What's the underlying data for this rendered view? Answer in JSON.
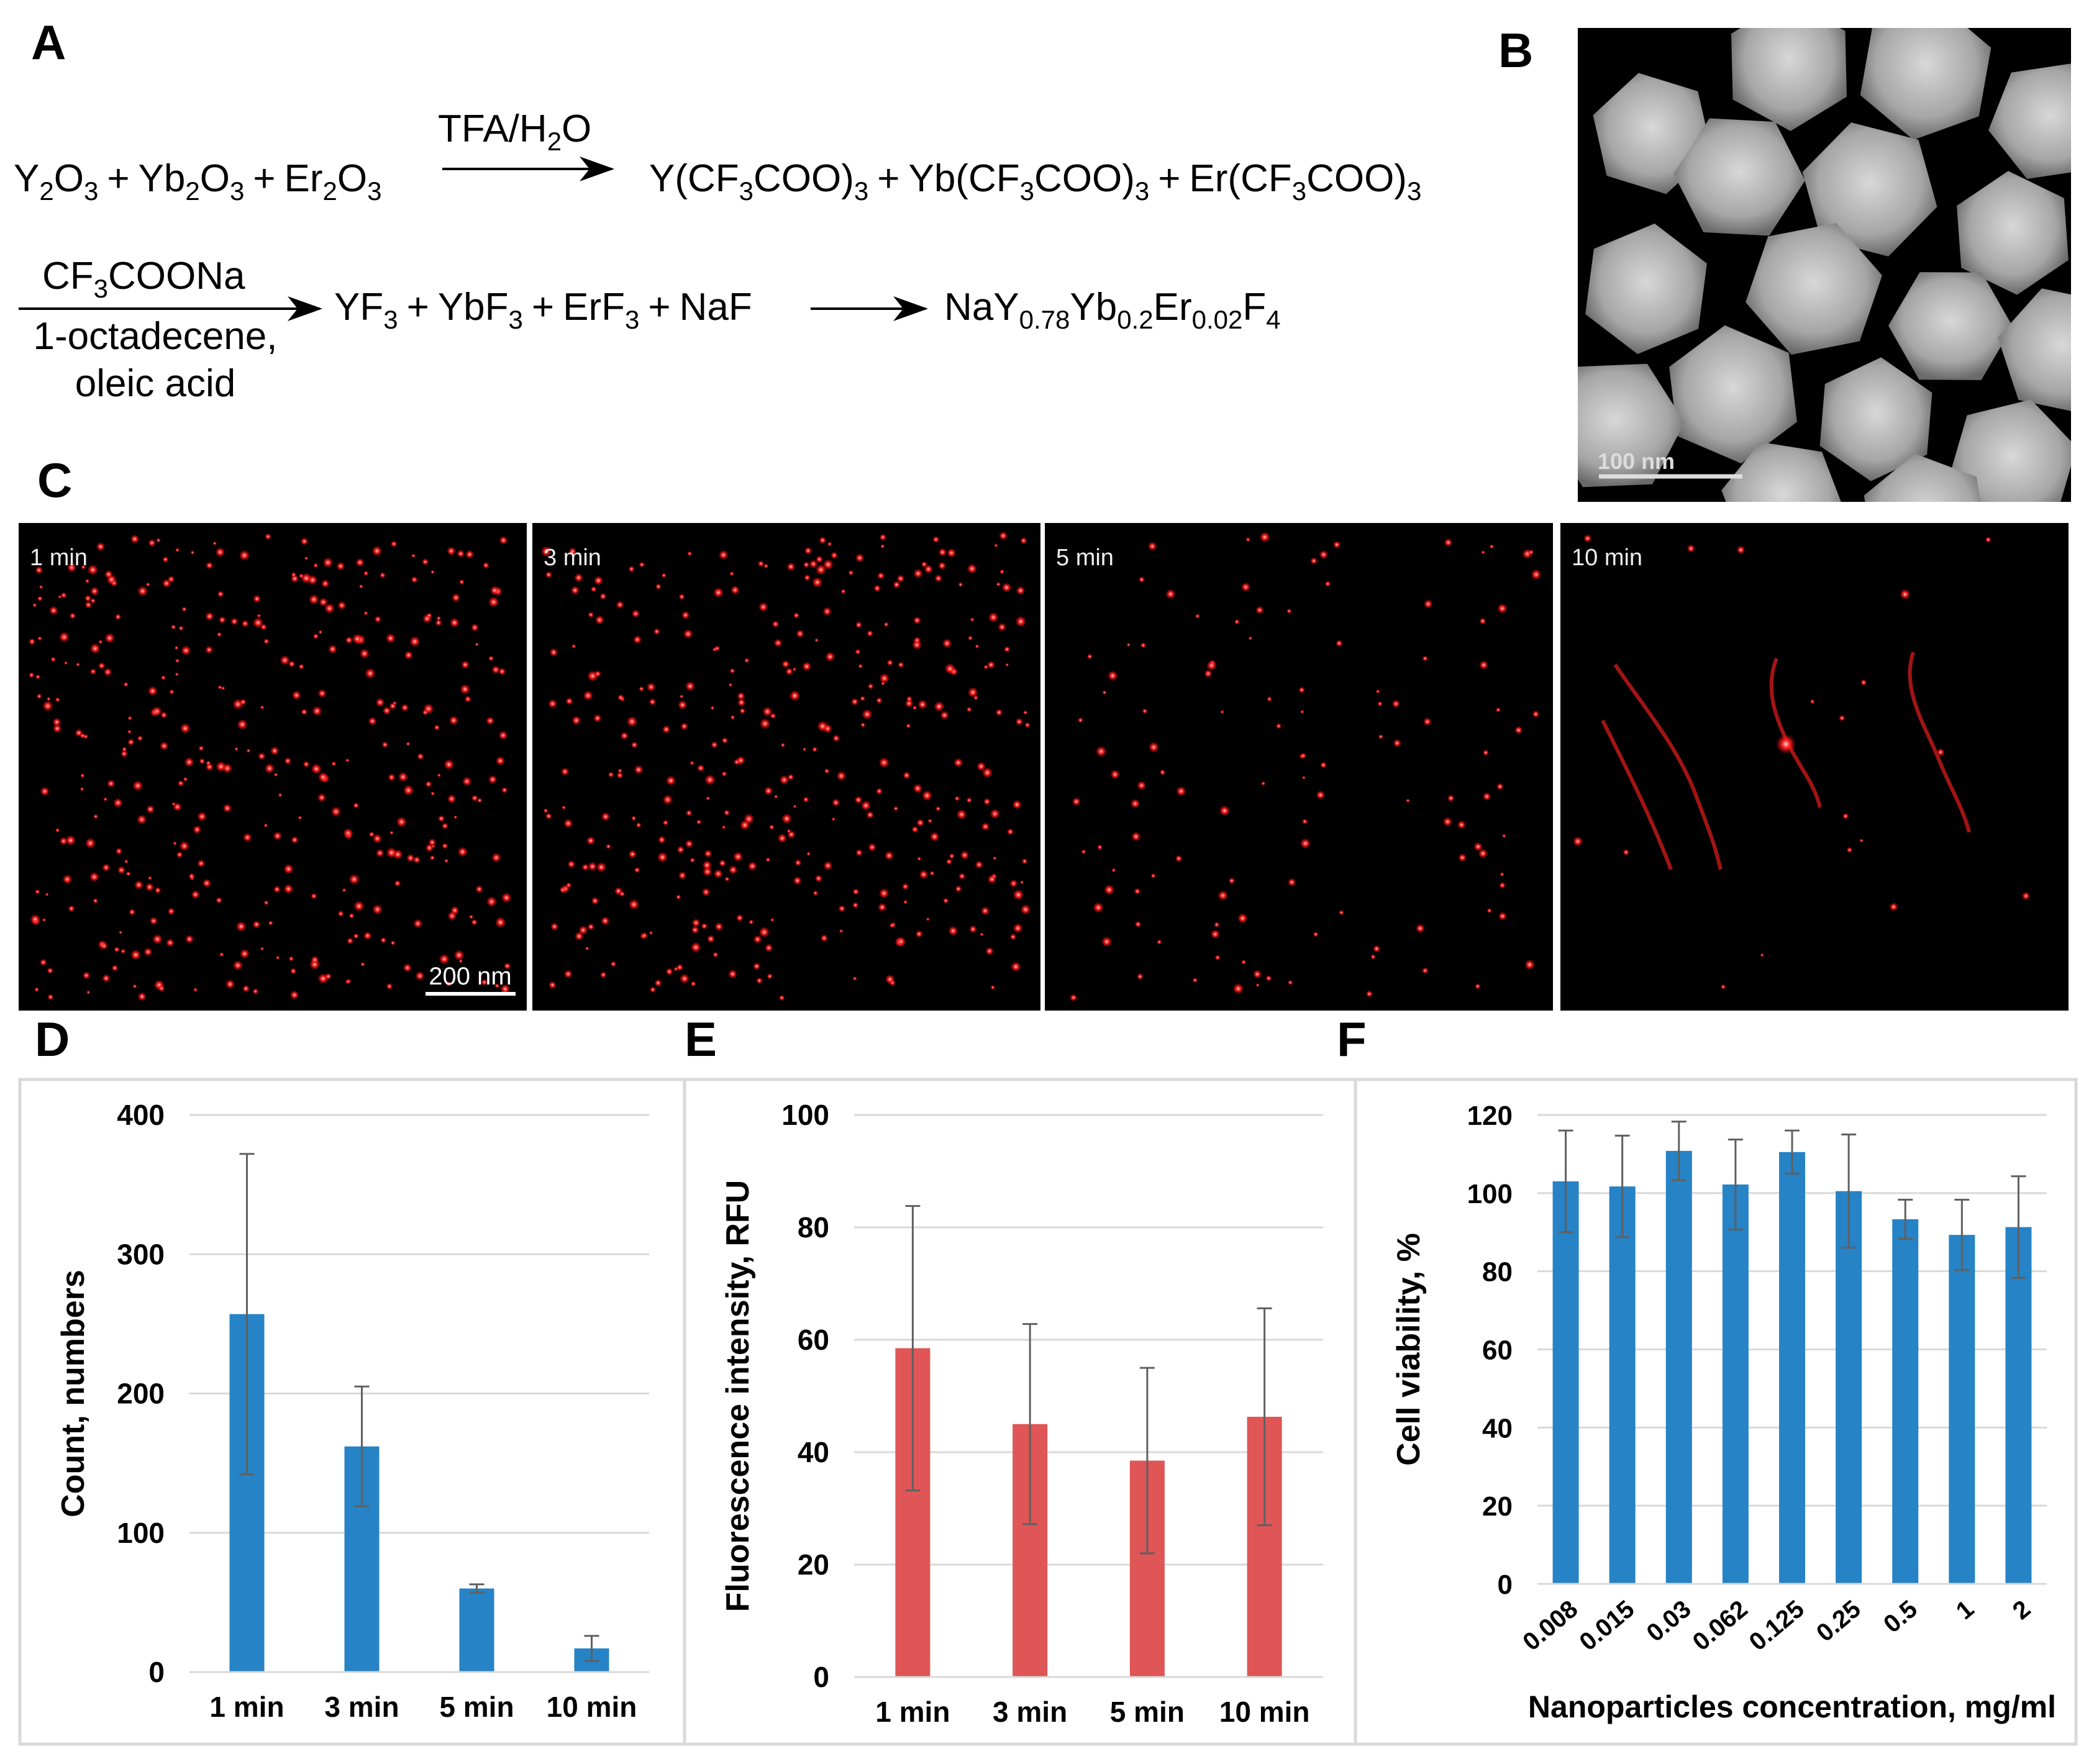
{
  "panel_labels": {
    "A": "A",
    "B": "B",
    "C": "C",
    "D": "D",
    "E": "E",
    "F": "F"
  },
  "reaction": {
    "reactants": {
      "y2o3": [
        "Y",
        "2",
        "O",
        "3"
      ],
      "yb2o3": [
        "Yb",
        "2",
        "O",
        "3"
      ],
      "er2o3": [
        "Er",
        "2",
        "O",
        "3"
      ],
      "plus": "+"
    },
    "reagent1": [
      "TFA/H",
      "2",
      "O"
    ],
    "trifluoroacetates": [
      [
        "Y(CF",
        "3",
        "COO)",
        "3"
      ],
      [
        "Yb(CF",
        "3",
        "COO)",
        "3"
      ],
      [
        "Er(CF",
        "3",
        "COO)",
        "3"
      ]
    ],
    "reagent2": [
      "CF",
      "3",
      "COONa"
    ],
    "solvent": [
      "1-octadecene,",
      "oleic acid"
    ],
    "fluorides": [
      [
        "YF",
        "3"
      ],
      [
        "YbF",
        "3"
      ],
      [
        "ErF",
        "3"
      ],
      [
        "NaF"
      ]
    ],
    "product": [
      "NaY",
      "0.78",
      "Yb",
      "0.2",
      "Er",
      "0.02",
      "F",
      "4"
    ]
  },
  "tem_image": {
    "scale_bar": "100 nm",
    "colors": {
      "background": "#000000",
      "particle": "#c8c8c8"
    }
  },
  "fluorescence_images": {
    "scale_bar": "200 nm",
    "panels": [
      {
        "label": "1 min",
        "density": 380
      },
      {
        "label": "3 min",
        "density": 360
      },
      {
        "label": "5 min",
        "density": 120
      },
      {
        "label": "10 min",
        "density": 18
      }
    ],
    "colors": {
      "spot": "#ff2a2a",
      "background": "#000000"
    }
  },
  "chart_data": [
    {
      "panel": "D",
      "type": "bar",
      "categories": [
        "1 min",
        "3 min",
        "5 min",
        "10 min"
      ],
      "values": [
        257,
        162,
        60,
        17
      ],
      "errors": [
        115,
        43,
        3,
        9
      ],
      "ylabel": "Count, numbers",
      "xlabel": "",
      "ylim": [
        0,
        400
      ],
      "yticks": [
        0,
        100,
        200,
        300,
        400
      ],
      "grid": true,
      "color": "#2683c6"
    },
    {
      "panel": "E",
      "type": "bar",
      "categories": [
        "1 min",
        "3 min",
        "5 min",
        "10 min"
      ],
      "values": [
        58.5,
        45,
        38.5,
        46.3
      ],
      "errors": [
        25.3,
        17.8,
        16.5,
        19.3
      ],
      "ylabel": "Fluorescence intensity, RFU",
      "xlabel": "",
      "ylim": [
        0,
        100
      ],
      "yticks": [
        0,
        20,
        40,
        60,
        80,
        100
      ],
      "grid": true,
      "color": "#e05555"
    },
    {
      "panel": "F",
      "type": "bar",
      "categories": [
        "0.008",
        "0.015",
        "0.03",
        "0.062",
        "0.125",
        "0.25",
        "0.5",
        "1",
        "2"
      ],
      "values": [
        103,
        101.7,
        110.8,
        102.2,
        110.5,
        100.5,
        93.3,
        89.3,
        91.3
      ],
      "errors": [
        13,
        13,
        7.5,
        11.5,
        5.5,
        14.5,
        5,
        9,
        13
      ],
      "ylabel": "Cell viability, %",
      "xlabel": "Nanoparticles concentration, mg/ml",
      "ylim": [
        0,
        120
      ],
      "yticks": [
        0,
        20,
        40,
        60,
        80,
        100,
        120
      ],
      "grid": true,
      "color": "#2683c6"
    }
  ]
}
